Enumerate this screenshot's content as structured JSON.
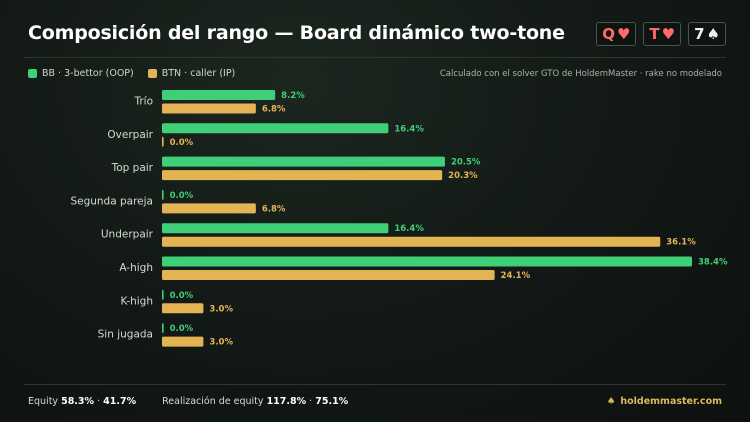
{
  "header": {
    "title": "Composición del rango — Board dinámico two-tone",
    "board_cards": [
      {
        "rank": "Q",
        "suit": "♥",
        "color": "#ff6b6b"
      },
      {
        "rank": "T",
        "suit": "♥",
        "color": "#ff6b6b"
      },
      {
        "rank": "7",
        "suit": "♠",
        "color": "#f2f2f2"
      }
    ]
  },
  "note": "Calculado con el solver GTO de HoldemMaster · rake no modelado",
  "chart_data": {
    "type": "bar",
    "orientation": "horizontal",
    "categories": [
      "Trío",
      "Overpair",
      "Top pair",
      "Segunda pareja",
      "Underpair",
      "A-high",
      "K-high",
      "Sin jugada"
    ],
    "series": [
      {
        "name": "BB · 3-bettor (OOP)",
        "color": "#3ecf78",
        "values": [
          8.2,
          16.4,
          20.5,
          0.0,
          16.4,
          38.4,
          0.0,
          0.0
        ]
      },
      {
        "name": "BTN · caller (IP)",
        "color": "#e2b454",
        "values": [
          6.8,
          0.0,
          20.3,
          6.8,
          36.1,
          24.1,
          3.0,
          3.0
        ]
      }
    ],
    "value_suffix": "%",
    "xlim": [
      0,
      38.4
    ],
    "legend_position": "top-left",
    "grid": false
  },
  "footer": {
    "equity_label": "Equity",
    "equity_bb": "58.3%",
    "equity_sep": "·",
    "equity_btn": "41.7%",
    "realization_label": "Realización de equity",
    "realization_bb": "117.8%",
    "realization_sep": "·",
    "realization_btn": "75.1%",
    "brand_icon": "spade-icon",
    "brand": "holdemmaster.com"
  }
}
